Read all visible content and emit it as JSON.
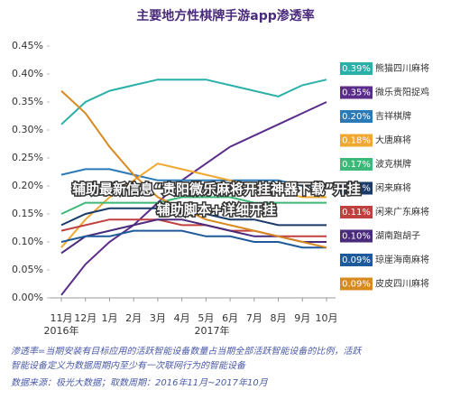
{
  "chart_data": {
    "type": "line",
    "title": "主要地方性棋牌手游app渗透率",
    "categories": [
      "11月",
      "12月",
      "1月",
      "2月",
      "3月",
      "4月",
      "5月",
      "6月",
      "7月",
      "8月",
      "9月",
      "10月"
    ],
    "year_labels": [
      {
        "category": 0,
        "text": "2016年"
      },
      {
        "category": 6,
        "text": "2017年"
      }
    ],
    "ylim": [
      0,
      0.45
    ],
    "yticks": [
      {
        "value": 0,
        "label": "0.00%"
      },
      {
        "value": 0.05,
        "label": "0.05%"
      },
      {
        "value": 0.1,
        "label": "0.10%"
      },
      {
        "value": 0.15,
        "label": "0.15%"
      },
      {
        "value": 0.2,
        "label": "0.20%"
      },
      {
        "value": 0.25,
        "label": "0.25%"
      },
      {
        "value": 0.3,
        "label": "0.30%"
      },
      {
        "value": 0.35,
        "label": "0.35%"
      },
      {
        "value": 0.4,
        "label": "0.40%"
      },
      {
        "value": 0.45,
        "label": "0.45%"
      }
    ],
    "series": [
      {
        "name": "熊猫四川麻将",
        "color": "#2ab0a8",
        "values": [
          0.31,
          0.35,
          0.37,
          0.38,
          0.39,
          0.39,
          0.39,
          0.38,
          0.37,
          0.36,
          0.38,
          0.39
        ],
        "value_labels": [
          null,
          null,
          null,
          null,
          null,
          null,
          null,
          null,
          null,
          null,
          null,
          "0.39%"
        ]
      },
      {
        "name": "微乐贵阳捉鸡",
        "color": "#5b2d8a",
        "values": [
          0.005,
          0.06,
          0.1,
          0.13,
          0.17,
          0.21,
          0.24,
          0.27,
          0.29,
          0.31,
          0.33,
          0.35
        ],
        "value_labels": [
          null,
          null,
          null,
          null,
          null,
          null,
          null,
          null,
          null,
          null,
          null,
          "0.35%"
        ]
      },
      {
        "name": "吉祥棋牌",
        "color": "#2a7ab8",
        "values": [
          0.22,
          0.23,
          0.23,
          0.22,
          0.21,
          0.21,
          0.21,
          0.21,
          0.21,
          0.21,
          0.2,
          0.2
        ],
        "value_labels": [
          null,
          null,
          null,
          null,
          null,
          null,
          null,
          null,
          null,
          null,
          null,
          "0.20%"
        ]
      },
      {
        "name": "大唐麻将",
        "color": "#f0a830",
        "values": [
          0.09,
          0.14,
          0.18,
          0.21,
          0.24,
          0.23,
          0.22,
          0.21,
          0.2,
          0.19,
          0.18,
          0.18
        ],
        "value_labels": [
          null,
          null,
          null,
          null,
          null,
          null,
          null,
          null,
          null,
          null,
          null,
          "0.18%"
        ]
      },
      {
        "name": "波克棋牌",
        "color": "#3cb878",
        "values": [
          0.15,
          0.17,
          0.17,
          0.17,
          0.17,
          0.18,
          0.18,
          0.18,
          0.17,
          0.17,
          0.17,
          0.17
        ],
        "value_labels": [
          null,
          null,
          null,
          null,
          null,
          null,
          null,
          null,
          null,
          null,
          null,
          "0.17%"
        ]
      },
      {
        "name": "闲来麻将",
        "color": "#1a3a6a",
        "values": [
          0.13,
          0.15,
          0.16,
          0.16,
          0.16,
          0.15,
          0.15,
          0.14,
          0.14,
          0.13,
          0.13,
          0.13
        ],
        "value_labels": [
          null,
          null,
          null,
          null,
          null,
          null,
          null,
          null,
          null,
          null,
          null,
          "0.13%"
        ]
      },
      {
        "name": "闲来广东麻将",
        "color": "#c04040",
        "values": [
          0.12,
          0.13,
          0.14,
          0.14,
          0.14,
          0.13,
          0.13,
          0.12,
          0.12,
          0.11,
          0.11,
          0.11
        ],
        "value_labels": [
          null,
          null,
          null,
          null,
          null,
          null,
          null,
          null,
          null,
          null,
          null,
          "0.11%"
        ]
      },
      {
        "name": "湖南跑胡子",
        "color": "#4a2a7a",
        "values": [
          0.08,
          0.11,
          0.12,
          0.13,
          0.14,
          0.14,
          0.13,
          0.12,
          0.11,
          0.11,
          0.1,
          0.1
        ],
        "value_labels": [
          null,
          null,
          null,
          null,
          null,
          null,
          null,
          null,
          null,
          null,
          null,
          "0.10%"
        ]
      },
      {
        "name": "琼崖海南麻将",
        "color": "#1e5a9a",
        "values": [
          0.1,
          0.11,
          0.11,
          0.12,
          0.12,
          0.12,
          0.11,
          0.11,
          0.1,
          0.1,
          0.09,
          0.09
        ],
        "value_labels": [
          null,
          null,
          null,
          null,
          null,
          null,
          null,
          null,
          null,
          null,
          null,
          "0.09%"
        ]
      },
      {
        "name": "皮皮四川麻将",
        "color": "#d88a20",
        "values": [
          0.37,
          0.33,
          0.27,
          0.22,
          0.18,
          0.16,
          0.14,
          0.13,
          0.12,
          0.11,
          0.1,
          0.09
        ],
        "value_labels": [
          null,
          null,
          null,
          null,
          null,
          null,
          null,
          null,
          null,
          null,
          null,
          "0.09%"
        ]
      }
    ],
    "notes": [
      "渗透率=当期安装有目标应用的活跃智能设备数量占当期全部活跃智能设备的比例，活跃",
      "智能设备定义为数据周期内至少有一次联网行为的智能设备",
      "数据来源：极光大数据；取数周期：2016年11月~2017年10月"
    ],
    "overlay_text": [
      "辅助最新信息“贵阳微乐麻将开挂神器下载”开挂",
      "辅助脚本+详细开挂"
    ]
  }
}
